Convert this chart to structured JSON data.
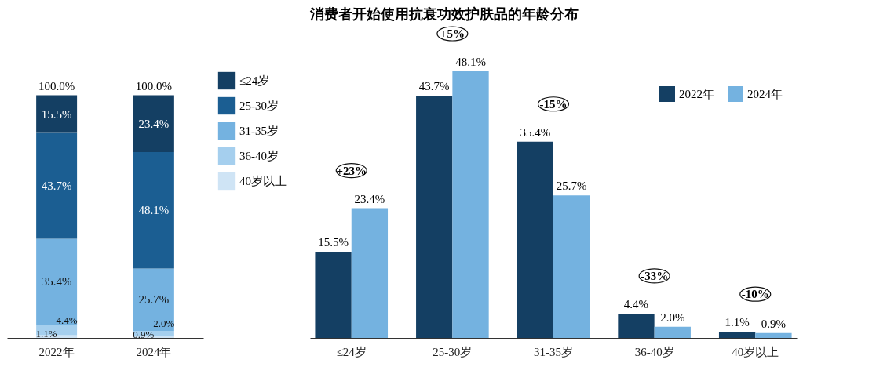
{
  "chart_data": [
    {
      "type": "bar",
      "stacked": true,
      "legend": "right",
      "categories": [
        "2022年",
        "2024年"
      ],
      "totals": [
        "100.0%",
        "100.0%"
      ],
      "series": [
        {
          "name": "40岁以上",
          "color": "#cfe4f5",
          "values": [
            1.1,
            0.9
          ],
          "value_labels": [
            "1.1%",
            "0.9%"
          ]
        },
        {
          "name": "36-40岁",
          "color": "#a5cfee",
          "values": [
            4.4,
            2.0
          ],
          "value_labels": [
            "4.4%",
            "2.0%"
          ]
        },
        {
          "name": "31-35岁",
          "color": "#74b2e0",
          "values": [
            35.4,
            25.7
          ],
          "value_labels": [
            "35.4%",
            "25.7%"
          ]
        },
        {
          "name": "25-30岁",
          "color": "#1b5e92",
          "values": [
            43.7,
            48.1
          ],
          "value_labels": [
            "43.7%",
            "48.1%"
          ]
        },
        {
          "name": "≤24岁",
          "color": "#143f63",
          "values": [
            15.5,
            23.4
          ],
          "value_labels": [
            "15.5%",
            "23.4%"
          ]
        }
      ]
    },
    {
      "type": "bar",
      "title": "消费者开始使用抗衰功效护肤品的年龄分布",
      "legend": "top right",
      "categories": [
        "≤24岁",
        "25-30岁",
        "31-35岁",
        "36-40岁",
        "40岁以上"
      ],
      "series": [
        {
          "name": "2022年",
          "color": "#143f63",
          "values": [
            15.5,
            43.7,
            35.4,
            4.4,
            1.1
          ],
          "value_labels": [
            "15.5%",
            "43.7%",
            "35.4%",
            "4.4%",
            "1.1%"
          ]
        },
        {
          "name": "2024年",
          "color": "#74b2e0",
          "values": [
            23.4,
            48.1,
            25.7,
            2.0,
            0.9
          ],
          "value_labels": [
            "23.4%",
            "48.1%",
            "25.7%",
            "2.0%",
            "0.9%"
          ]
        }
      ],
      "annotations": [
        "+23%",
        "+5%",
        "-15%",
        "-33%",
        "-10%"
      ]
    }
  ]
}
